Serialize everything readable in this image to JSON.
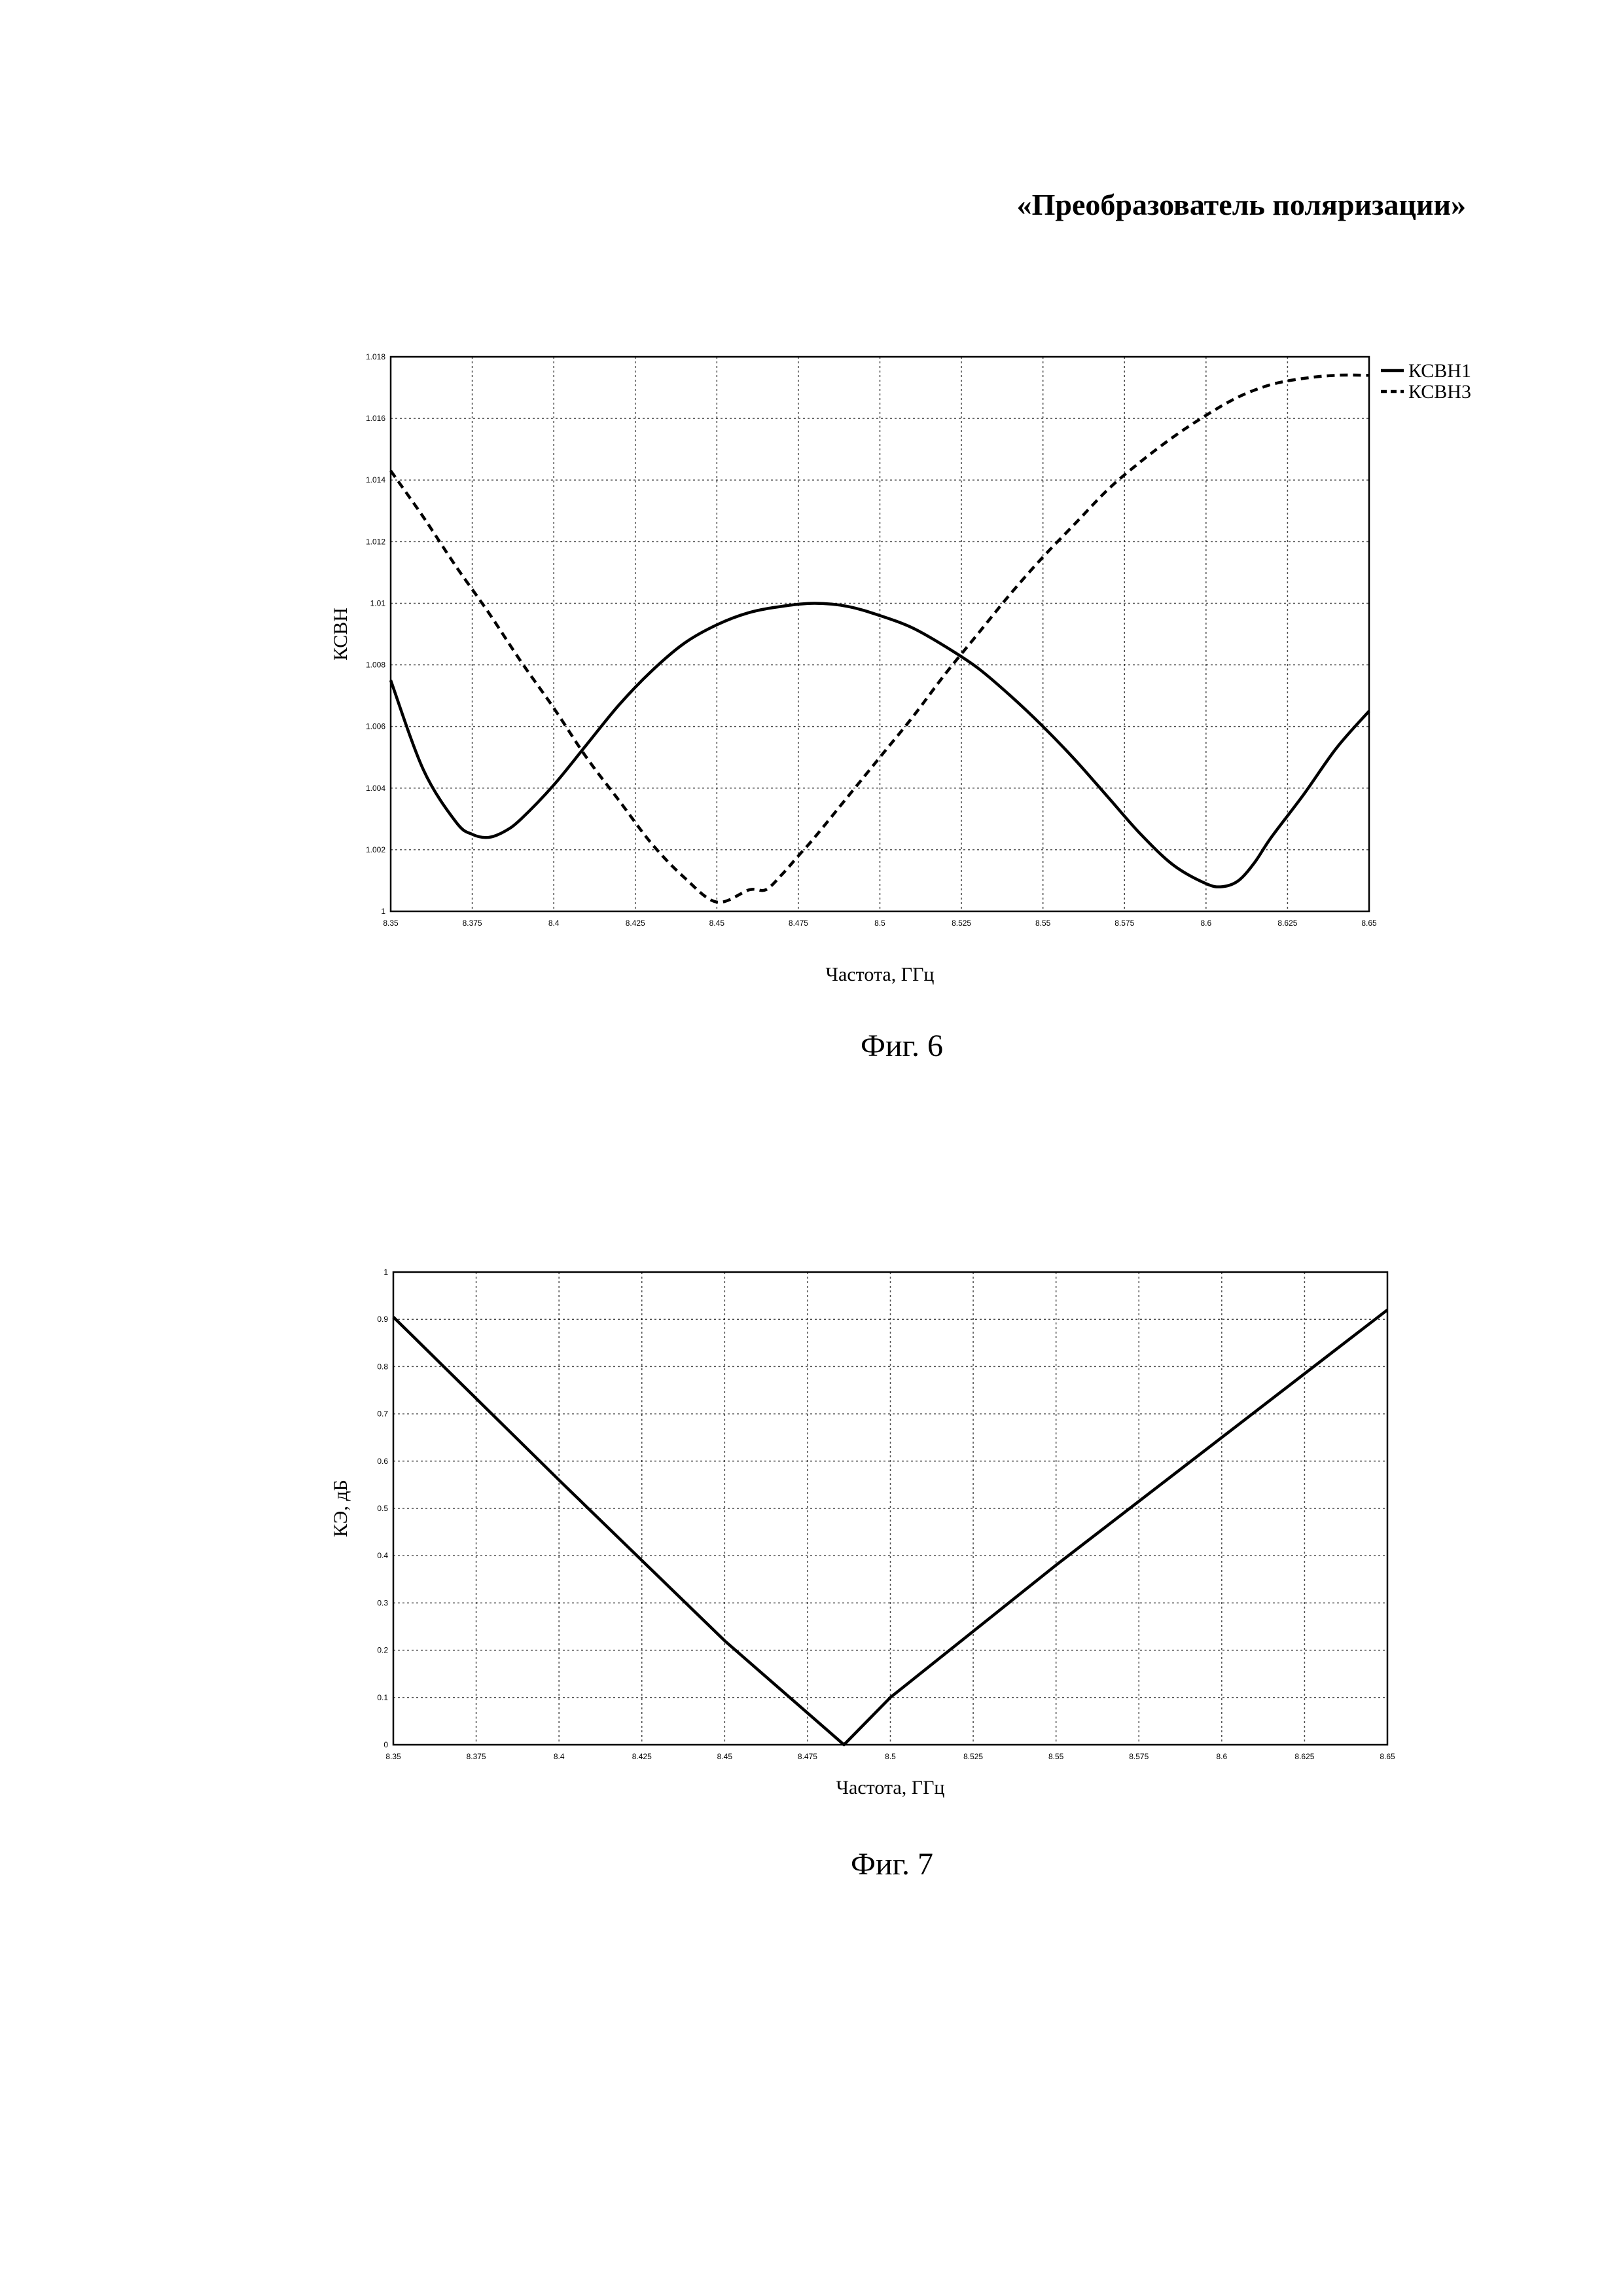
{
  "page": {
    "title": "«Преобразователь поляризации»"
  },
  "chart_data": [
    {
      "type": "line",
      "caption": "Фиг. 6",
      "xlabel": "Частота, ГГц",
      "ylabel": "КСВН",
      "xlim": [
        8.35,
        8.65
      ],
      "ylim": [
        1.0,
        1.018
      ],
      "xticks": [
        "8.35",
        "8.375",
        "8.4",
        "8.425",
        "8.45",
        "8.475",
        "8.5",
        "8.525",
        "8.55",
        "8.575",
        "8.6",
        "8.625",
        "8.65"
      ],
      "yticks": [
        "1",
        "1.002",
        "1.004",
        "1.006",
        "1.008",
        "1.01",
        "1.012",
        "1.014",
        "1.016",
        "1.018"
      ],
      "grid": true,
      "legend_position": "top-right",
      "series": [
        {
          "name": "КСВН1",
          "style": "solid",
          "x": [
            8.35,
            8.36,
            8.37,
            8.375,
            8.38,
            8.385,
            8.39,
            8.4,
            8.41,
            8.42,
            8.43,
            8.44,
            8.45,
            8.46,
            8.47,
            8.48,
            8.49,
            8.5,
            8.51,
            8.52,
            8.53,
            8.54,
            8.55,
            8.56,
            8.57,
            8.58,
            8.59,
            8.6,
            8.605,
            8.61,
            8.615,
            8.62,
            8.63,
            8.64,
            8.65
          ],
          "y": [
            1.0075,
            1.0046,
            1.0029,
            1.0025,
            1.0024,
            1.0026,
            1.003,
            1.0041,
            1.0054,
            1.0067,
            1.0078,
            1.0087,
            1.0093,
            1.0097,
            1.0099,
            1.01,
            1.0099,
            1.0096,
            1.0092,
            1.0086,
            1.0079,
            1.007,
            1.006,
            1.0049,
            1.0037,
            1.0025,
            1.0015,
            1.0009,
            1.0008,
            1.001,
            1.0016,
            1.0024,
            1.0038,
            1.0053,
            1.0065
          ]
        },
        {
          "name": "КСВН3",
          "style": "dashed",
          "x": [
            8.35,
            8.36,
            8.37,
            8.38,
            8.39,
            8.4,
            8.41,
            8.42,
            8.43,
            8.44,
            8.45,
            8.46,
            8.465,
            8.47,
            8.475,
            8.48,
            8.49,
            8.5,
            8.51,
            8.52,
            8.53,
            8.54,
            8.55,
            8.56,
            8.57,
            8.58,
            8.59,
            8.6,
            8.61,
            8.62,
            8.63,
            8.64,
            8.65
          ],
          "y": [
            1.0143,
            1.0128,
            1.0112,
            1.0097,
            1.0081,
            1.0066,
            1.005,
            1.0036,
            1.0022,
            1.0011,
            1.0003,
            1.0007,
            1.0007,
            1.0012,
            1.0018,
            1.0024,
            1.0037,
            1.005,
            1.0063,
            1.0077,
            1.009,
            1.0103,
            1.0115,
            1.0126,
            1.0137,
            1.0146,
            1.0154,
            1.0161,
            1.0167,
            1.0171,
            1.0173,
            1.0174,
            1.0174
          ]
        }
      ]
    },
    {
      "type": "line",
      "caption": "Фиг. 7",
      "xlabel": "Частота, ГГц",
      "ylabel": "КЭ, дБ",
      "xlim": [
        8.35,
        8.65
      ],
      "ylim": [
        0,
        1
      ],
      "xticks": [
        "8.35",
        "8.375",
        "8.4",
        "8.425",
        "8.45",
        "8.475",
        "8.5",
        "8.525",
        "8.55",
        "8.575",
        "8.6",
        "8.625",
        "8.65"
      ],
      "yticks": [
        "0",
        "0.1",
        "0.2",
        "0.3",
        "0.4",
        "0.5",
        "0.6",
        "0.7",
        "0.8",
        "0.9",
        "1"
      ],
      "grid": true,
      "series": [
        {
          "style": "solid",
          "x": [
            8.35,
            8.4,
            8.45,
            8.486,
            8.5,
            8.55,
            8.6,
            8.65
          ],
          "y": [
            0.905,
            0.56,
            0.22,
            0.0,
            0.1,
            0.38,
            0.65,
            0.92
          ]
        }
      ]
    }
  ]
}
